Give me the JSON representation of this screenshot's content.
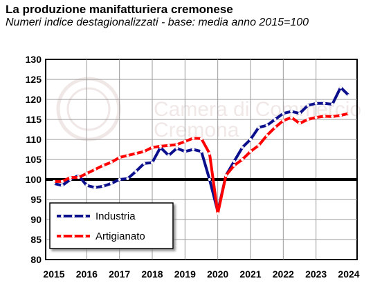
{
  "header": {
    "title": "La produzione manifatturiera cremonese",
    "subtitle": "Numeri indice destagionalizzati - base: media anno 2015=100"
  },
  "chart_data": {
    "type": "line",
    "title": "La produzione manifatturiera cremonese",
    "subtitle": "Numeri indice destagionalizzati - base: media anno 2015=100",
    "xlabel": "",
    "ylabel": "",
    "ylim": [
      80,
      130
    ],
    "y_ticks": [
      80,
      85,
      90,
      95,
      100,
      105,
      110,
      115,
      120,
      125,
      130
    ],
    "x_ticks": [
      "2015",
      "2016",
      "2017",
      "2018",
      "2019",
      "2020",
      "2021",
      "2022",
      "2023",
      "2024"
    ],
    "x_range": [
      2015,
      2024
    ],
    "grid": true,
    "legend_position": "bottom-left",
    "reference_line": 100,
    "watermark": "Camera di Commercio Cremona",
    "colors": {
      "industria": "#0c0f8c",
      "artigianato": "#ff0000",
      "reference": "#000000",
      "plot_border": "#000000"
    },
    "series": [
      {
        "name": "Industria",
        "color": "#0c0f8c",
        "x": [
          2015,
          2015.25,
          2015.5,
          2015.75,
          2016,
          2016.25,
          2016.5,
          2016.75,
          2017,
          2017.25,
          2017.5,
          2017.75,
          2018,
          2018.25,
          2018.5,
          2018.75,
          2019,
          2019.25,
          2019.5,
          2019.75,
          2020,
          2020.25,
          2020.5,
          2020.75,
          2021,
          2021.25,
          2021.5,
          2021.75,
          2022,
          2022.25,
          2022.5,
          2022.75,
          2023,
          2023.25,
          2023.5,
          2023.75,
          2024
        ],
        "values": [
          99,
          98.5,
          100,
          101,
          98.5,
          98,
          98.3,
          99,
          100,
          100.2,
          102,
          104,
          104.2,
          108,
          106,
          107.8,
          107,
          107.5,
          107,
          100,
          92,
          101,
          104.5,
          108,
          110,
          113,
          113.5,
          115,
          116.5,
          117,
          116.5,
          118.5,
          119,
          119,
          118.8,
          123,
          121
        ]
      },
      {
        "name": "Artigianato",
        "color": "#ff0000",
        "x": [
          2015,
          2015.25,
          2015.5,
          2015.75,
          2016,
          2016.25,
          2016.5,
          2016.75,
          2017,
          2017.25,
          2017.5,
          2017.75,
          2018,
          2018.25,
          2018.5,
          2018.75,
          2019,
          2019.25,
          2019.5,
          2019.75,
          2020,
          2020.25,
          2020.5,
          2020.75,
          2021,
          2021.25,
          2021.5,
          2021.75,
          2022,
          2022.25,
          2022.5,
          2022.75,
          2023,
          2023.25,
          2023.5,
          2023.75,
          2024
        ],
        "values": [
          99.5,
          99.5,
          100.5,
          100.5,
          101.5,
          102.5,
          103.5,
          104.3,
          105.5,
          106,
          106.5,
          107,
          108,
          108.3,
          108.5,
          108.7,
          109.5,
          110.3,
          110.2,
          106.5,
          91.5,
          101,
          103.5,
          105,
          107,
          108.5,
          111,
          113,
          114.7,
          115.5,
          114,
          115,
          115.5,
          115.8,
          115.7,
          116,
          116.5
        ]
      }
    ]
  }
}
